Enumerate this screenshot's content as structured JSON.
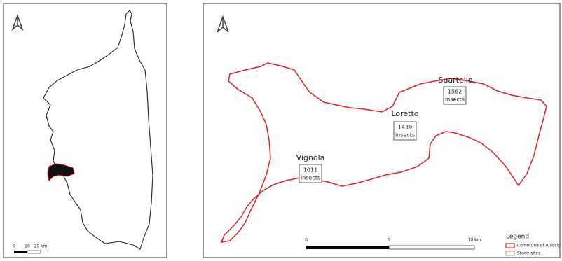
{
  "scale_bars": [
    {
      "labels": [
        "0",
        "10",
        "20 km"
      ]
    },
    {
      "labels": [
        "0",
        "5",
        "10 km"
      ]
    }
  ],
  "sites": [
    {
      "name": "Suartello",
      "count": "1562",
      "unit": "insects"
    },
    {
      "name": "Loretto",
      "count": "1439",
      "unit": "insects"
    },
    {
      "name": "Vignola",
      "count": "1011",
      "unit": "insects"
    }
  ],
  "legend": {
    "title": "Legend",
    "items": [
      "Commune of Ajaccio",
      "Study sites"
    ]
  }
}
